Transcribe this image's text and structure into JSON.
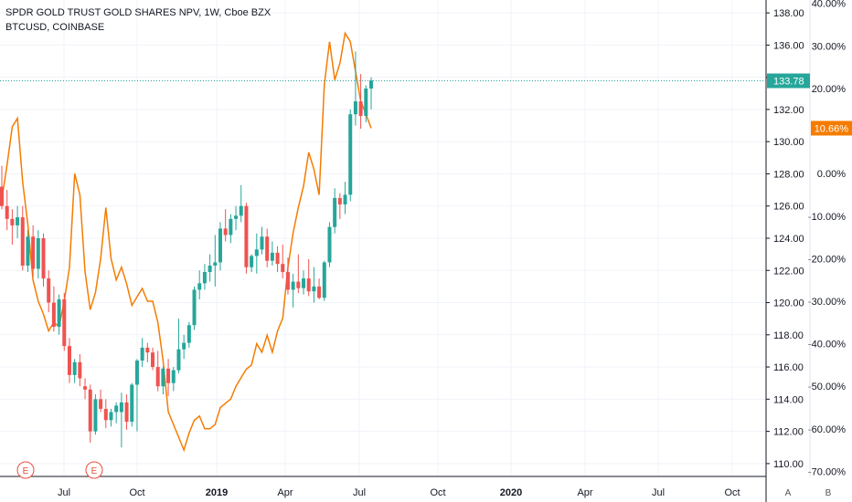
{
  "legend": {
    "main": "SPDR GOLD TRUST GOLD SHARES NPV, 1W, Cboe BZX",
    "compare": "BTCUSD, COINBASE"
  },
  "colors": {
    "up": "#26a69a",
    "down": "#ef5350",
    "compare_line": "#f57c00",
    "price_badge": "#26a69a",
    "compare_badge": "#f57c00",
    "event": "#e74c3c"
  },
  "badges": {
    "price": "133.78",
    "compare": "10.66%"
  },
  "events": [
    "E",
    "E"
  ],
  "corner_buttons": [
    "A",
    "B"
  ],
  "chart_data": {
    "type": "candlestick",
    "y_left_ticks": [
      "138.00",
      "136.00",
      "134.00",
      "132.00",
      "130.00",
      "128.00",
      "126.00",
      "124.00",
      "122.00",
      "120.00",
      "118.00",
      "116.00",
      "114.00",
      "112.00",
      "110.00"
    ],
    "y_pct_ticks": [
      "40.00%",
      "30.00%",
      "20.00%",
      "10.00%",
      "0.00%",
      "-10.00%",
      "-20.00%",
      "-30.00%",
      "-40.00%",
      "-50.00%",
      "-60.00%",
      "-70.00%"
    ],
    "x_ticks": [
      {
        "label": "Jul",
        "bold": false
      },
      {
        "label": "Oct",
        "bold": false
      },
      {
        "label": "2019",
        "bold": true
      },
      {
        "label": "Apr",
        "bold": false
      },
      {
        "label": "Jul",
        "bold": false
      },
      {
        "label": "Oct",
        "bold": false
      },
      {
        "label": "2020",
        "bold": true
      },
      {
        "label": "Apr",
        "bold": false
      },
      {
        "label": "Jul",
        "bold": false
      },
      {
        "label": "Oct",
        "bold": false
      }
    ],
    "ylim": [
      109.2,
      138.8
    ],
    "pct_lim": [
      -71.2,
      40.8
    ],
    "last_price": 133.78,
    "candles": [
      [
        127.2,
        128.5,
        125.8,
        126.0
      ],
      [
        126.0,
        127.0,
        124.5,
        125.2
      ],
      [
        125.2,
        125.8,
        123.6,
        124.8
      ],
      [
        124.8,
        126.0,
        124.0,
        125.3
      ],
      [
        125.3,
        126.0,
        122.0,
        122.3
      ],
      [
        122.3,
        124.5,
        121.9,
        124.1
      ],
      [
        124.1,
        124.8,
        121.6,
        122.1
      ],
      [
        122.1,
        124.5,
        121.5,
        124.0
      ],
      [
        124.0,
        124.3,
        121.0,
        121.5
      ],
      [
        121.5,
        122.0,
        119.4,
        120.0
      ],
      [
        120.0,
        121.0,
        118.2,
        118.5
      ],
      [
        118.5,
        120.5,
        118.0,
        120.2
      ],
      [
        120.2,
        120.6,
        117.0,
        117.3
      ],
      [
        117.3,
        117.8,
        115.0,
        115.5
      ],
      [
        115.5,
        116.5,
        115.0,
        116.3
      ],
      [
        116.3,
        116.8,
        114.8,
        115.3
      ],
      [
        114.8,
        115.3,
        114.0,
        114.6
      ],
      [
        114.6,
        114.9,
        111.3,
        112.0
      ],
      [
        112.0,
        114.3,
        111.8,
        114.0
      ],
      [
        114.0,
        114.6,
        113.2,
        113.4
      ],
      [
        113.4,
        114.0,
        112.2,
        112.7
      ],
      [
        112.7,
        113.4,
        112.3,
        113.2
      ],
      [
        113.2,
        113.8,
        112.5,
        113.6
      ],
      [
        113.2,
        114.4,
        111.0,
        113.8
      ],
      [
        113.8,
        114.3,
        112.1,
        112.6
      ],
      [
        112.6,
        115.0,
        112.3,
        114.9
      ],
      [
        114.9,
        116.5,
        112.0,
        116.4
      ],
      [
        116.4,
        117.8,
        116.0,
        117.2
      ],
      [
        117.2,
        117.5,
        116.3,
        116.9
      ],
      [
        116.9,
        117.2,
        115.8,
        116.0
      ],
      [
        116.0,
        117.0,
        114.5,
        114.8
      ],
      [
        114.8,
        116.0,
        114.3,
        115.9
      ],
      [
        115.9,
        116.5,
        114.2,
        115.0
      ],
      [
        115.0,
        116.0,
        114.5,
        115.8
      ],
      [
        115.8,
        119.0,
        115.6,
        117.1
      ],
      [
        117.1,
        118.0,
        116.5,
        117.5
      ],
      [
        117.5,
        118.8,
        117.2,
        118.6
      ],
      [
        118.6,
        121.0,
        118.3,
        120.8
      ],
      [
        120.8,
        122.0,
        120.2,
        121.2
      ],
      [
        121.2,
        122.4,
        120.8,
        121.9
      ],
      [
        121.9,
        123.0,
        121.3,
        122.3
      ],
      [
        122.3,
        124.2,
        121.0,
        122.5
      ],
      [
        122.5,
        125.0,
        122.0,
        124.6
      ],
      [
        124.6,
        125.8,
        123.8,
        124.2
      ],
      [
        124.2,
        125.5,
        123.7,
        125.2
      ],
      [
        125.2,
        126.0,
        124.5,
        125.4
      ],
      [
        125.4,
        127.3,
        125.0,
        126.0
      ],
      [
        126.0,
        126.2,
        121.8,
        122.2
      ],
      [
        122.2,
        123.0,
        121.9,
        122.9
      ],
      [
        122.9,
        124.3,
        121.8,
        123.3
      ],
      [
        123.3,
        124.7,
        123.0,
        124.1
      ],
      [
        124.1,
        124.6,
        122.2,
        122.6
      ],
      [
        122.6,
        123.8,
        122.3,
        123.1
      ],
      [
        123.1,
        123.5,
        121.9,
        122.4
      ],
      [
        122.4,
        123.6,
        121.5,
        121.9
      ],
      [
        121.9,
        122.8,
        120.5,
        120.8
      ],
      [
        120.8,
        121.8,
        119.7,
        121.3
      ],
      [
        121.3,
        123.0,
        120.6,
        120.9
      ],
      [
        120.9,
        122.0,
        120.5,
        121.5
      ],
      [
        121.5,
        122.7,
        120.4,
        120.7
      ],
      [
        120.7,
        122.2,
        120.0,
        121.0
      ],
      [
        121.0,
        121.5,
        120.2,
        120.3
      ],
      [
        120.3,
        122.6,
        120.1,
        122.5
      ],
      [
        122.5,
        125.0,
        122.2,
        124.7
      ],
      [
        124.7,
        127.1,
        124.3,
        126.5
      ],
      [
        126.5,
        126.8,
        125.2,
        126.1
      ],
      [
        126.1,
        127.5,
        125.5,
        126.7
      ],
      [
        126.7,
        132.0,
        126.3,
        131.7
      ],
      [
        131.7,
        135.6,
        131.0,
        132.5
      ],
      [
        132.5,
        134.2,
        130.8,
        131.6
      ],
      [
        131.6,
        133.5,
        131.2,
        133.3
      ],
      [
        133.3,
        134.0,
        132.0,
        133.8
      ]
    ],
    "compare_series": [
      -6,
      2,
      11,
      13,
      -2,
      -12,
      -25,
      -30,
      -33,
      -37,
      -35,
      -36,
      -30,
      -22,
      0,
      -5,
      -23,
      -32,
      -28,
      -20,
      -8,
      -20,
      -25,
      -22,
      -26,
      -31,
      -29,
      -27,
      -30,
      -30,
      -35,
      -44,
      -56,
      -59,
      -62,
      -65,
      -61,
      -58,
      -57,
      -60,
      -60,
      -59,
      -55,
      -54,
      -53,
      -50,
      -48,
      -46,
      -45,
      -40,
      -42,
      -38,
      -42,
      -37,
      -34,
      -22,
      -14,
      -8,
      -3,
      5,
      1,
      -5,
      21,
      31,
      22,
      26,
      33,
      31,
      24,
      17,
      14,
      10.66
    ]
  }
}
